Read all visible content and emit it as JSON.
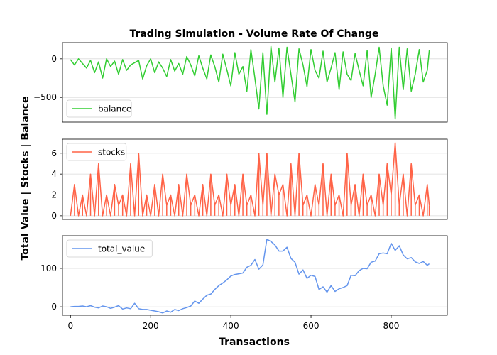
{
  "chart_data": {
    "type": "line",
    "title": "Trading Simulation - Volume Rate Of Change",
    "xlabel": "Transactions",
    "ylabel": "Total Value | Stocks | Balance",
    "grid": true,
    "shared_x": true,
    "xlim": [
      -20,
      940
    ],
    "x_ticks": [
      0,
      200,
      400,
      600,
      800
    ],
    "x_tick_labels": [
      "0",
      "200",
      "400",
      "600",
      "800"
    ],
    "panels": [
      {
        "series": [
          {
            "name": "balance",
            "color": "#32cd32",
            "x": [
              0,
              10,
              20,
              30,
              40,
              50,
              60,
              70,
              80,
              90,
              100,
              110,
              120,
              130,
              140,
              150,
              160,
              170,
              180,
              190,
              200,
              210,
              220,
              230,
              240,
              250,
              260,
              270,
              280,
              290,
              300,
              310,
              320,
              330,
              340,
              350,
              360,
              370,
              380,
              390,
              400,
              410,
              420,
              430,
              440,
              450,
              460,
              470,
              480,
              490,
              500,
              510,
              520,
              530,
              540,
              550,
              560,
              570,
              580,
              590,
              600,
              610,
              620,
              630,
              640,
              650,
              660,
              670,
              680,
              690,
              700,
              710,
              720,
              730,
              740,
              750,
              760,
              770,
              780,
              790,
              800,
              810,
              820,
              830,
              840,
              850,
              860,
              870,
              880,
              890,
              895
            ],
            "values": [
              -10,
              -80,
              0,
              -60,
              -120,
              -20,
              -180,
              -40,
              -250,
              0,
              -100,
              -30,
              -200,
              -10,
              -150,
              -80,
              -50,
              -20,
              -260,
              -90,
              0,
              -180,
              -40,
              -120,
              -230,
              -10,
              -160,
              -60,
              -200,
              30,
              -80,
              -220,
              40,
              -120,
              -260,
              50,
              -100,
              -300,
              60,
              -140,
              -350,
              80,
              -200,
              -100,
              -420,
              120,
              -250,
              -650,
              80,
              -720,
              160,
              -300,
              140,
              -500,
              150,
              -200,
              -560,
              130,
              -80,
              -360,
              120,
              -150,
              -250,
              100,
              -300,
              -120,
              80,
              -400,
              90,
              -200,
              -280,
              70,
              -150,
              -350,
              110,
              -500,
              -200,
              150,
              -350,
              -600,
              140,
              -780,
              150,
              -400,
              130,
              -420,
              -200,
              120,
              -300,
              -150,
              110
            ]
          }
        ],
        "ylim": [
          -820,
          210
        ],
        "y_ticks": [
          -500,
          0
        ],
        "y_tick_labels": [
          "−500",
          "0"
        ],
        "legend_position": "lower-left"
      },
      {
        "series": [
          {
            "name": "stocks",
            "color": "#ff6347",
            "x": [
              0,
              10,
              20,
              30,
              40,
              50,
              60,
              70,
              80,
              90,
              100,
              110,
              120,
              130,
              140,
              150,
              160,
              170,
              180,
              190,
              200,
              210,
              220,
              230,
              240,
              250,
              260,
              270,
              280,
              290,
              300,
              310,
              320,
              330,
              340,
              350,
              360,
              370,
              380,
              390,
              400,
              410,
              420,
              430,
              440,
              450,
              460,
              470,
              480,
              490,
              500,
              510,
              520,
              530,
              540,
              550,
              560,
              570,
              580,
              590,
              600,
              610,
              620,
              630,
              640,
              650,
              660,
              670,
              680,
              690,
              700,
              710,
              720,
              730,
              740,
              750,
              760,
              770,
              780,
              790,
              800,
              810,
              820,
              830,
              840,
              850,
              860,
              870,
              880,
              890,
              895
            ],
            "values": [
              0,
              3,
              0,
              2,
              0,
              4,
              0,
              5,
              0,
              2,
              0,
              3,
              1,
              2,
              0,
              5,
              0,
              6,
              0,
              2,
              0,
              3,
              0,
              4,
              1,
              2,
              0,
              3,
              0,
              4,
              1,
              2,
              0,
              3,
              0,
              4,
              1,
              2,
              0,
              4,
              1,
              3,
              0,
              4,
              1,
              2,
              0,
              6,
              1,
              6,
              0,
              4,
              2,
              3,
              0,
              5,
              0,
              6,
              1,
              2,
              0,
              3,
              1,
              5,
              0,
              4,
              1,
              2,
              0,
              6,
              1,
              3,
              0,
              4,
              1,
              2,
              0,
              4,
              1,
              5,
              2,
              7,
              1,
              4,
              0,
              5,
              1,
              2,
              0,
              3,
              1
            ],
            "fill_min": [
              0,
              0,
              0,
              0,
              0,
              0,
              0,
              0,
              0,
              0,
              0,
              0,
              0,
              0,
              0,
              0,
              0,
              0,
              0,
              0,
              0,
              0,
              0,
              0,
              0,
              0,
              0,
              0,
              0,
              0,
              0,
              0,
              0,
              0,
              0,
              0,
              0,
              0,
              0,
              0,
              0,
              0,
              0,
              0,
              0,
              0,
              0,
              0,
              0,
              0,
              0,
              0,
              0,
              0,
              0,
              0,
              0,
              0,
              0,
              0,
              0,
              0,
              0,
              0,
              0,
              0,
              0,
              0,
              0,
              0,
              0,
              0,
              0,
              0,
              0,
              0,
              0,
              0,
              0,
              0,
              0,
              0,
              0,
              0,
              0,
              0,
              0,
              0,
              0,
              0,
              0
            ]
          }
        ],
        "ylim": [
          -0.35,
          7.35
        ],
        "y_ticks": [
          0,
          2,
          4,
          6
        ],
        "y_tick_labels": [
          "0",
          "2",
          "4",
          "6"
        ],
        "legend_position": "upper-left"
      },
      {
        "series": [
          {
            "name": "total_value",
            "color": "#6495ed",
            "x": [
              0,
              10,
              20,
              30,
              40,
              50,
              60,
              70,
              80,
              90,
              100,
              110,
              120,
              130,
              140,
              150,
              160,
              170,
              180,
              190,
              200,
              210,
              220,
              230,
              240,
              250,
              260,
              270,
              280,
              290,
              300,
              310,
              320,
              330,
              340,
              350,
              360,
              370,
              380,
              390,
              400,
              410,
              420,
              430,
              440,
              450,
              460,
              470,
              480,
              490,
              500,
              510,
              520,
              530,
              540,
              550,
              560,
              570,
              580,
              590,
              600,
              610,
              620,
              630,
              640,
              650,
              660,
              670,
              680,
              690,
              700,
              710,
              720,
              730,
              740,
              750,
              760,
              770,
              780,
              790,
              800,
              810,
              820,
              830,
              840,
              850,
              860,
              870,
              880,
              890,
              895
            ],
            "values": [
              0,
              1,
              1,
              2,
              0,
              3,
              -1,
              -3,
              2,
              0,
              -4,
              -1,
              3,
              -6,
              -3,
              -5,
              9,
              -5,
              -7,
              -7,
              -9,
              -11,
              -13,
              -16,
              -11,
              -14,
              -7,
              -10,
              -5,
              -2,
              2,
              15,
              9,
              20,
              30,
              33,
              45,
              55,
              62,
              70,
              80,
              84,
              86,
              88,
              103,
              108,
              123,
              98,
              109,
              176,
              170,
              161,
              145,
              145,
              155,
              126,
              116,
              85,
              96,
              74,
              82,
              79,
              45,
              52,
              38,
              55,
              40,
              47,
              50,
              55,
              82,
              81,
              94,
              100,
              99,
              116,
              119,
              138,
              140,
              138,
              165,
              147,
              159,
              135,
              125,
              128,
              117,
              113,
              118,
              108,
              112
            ]
          }
        ],
        "ylim": [
          -22,
          185
        ],
        "y_ticks": [
          0,
          100
        ],
        "y_tick_labels": [
          "0",
          "100"
        ],
        "legend_position": "upper-left"
      }
    ]
  }
}
